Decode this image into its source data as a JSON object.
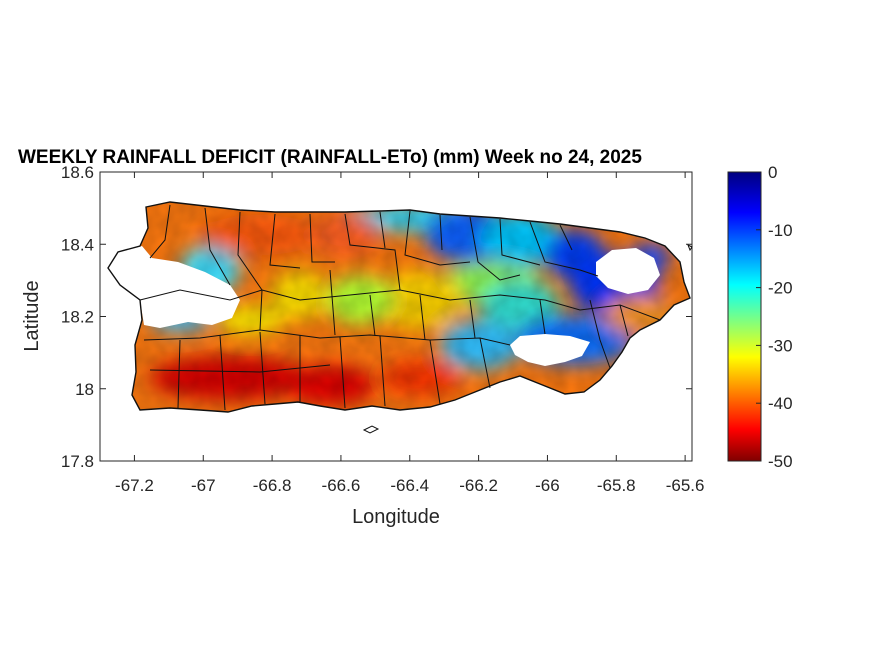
{
  "chart_data": {
    "type": "heatmap",
    "title": "WEEKLY RAINFALL DEFICIT (RAINFALL-ETo) (mm) Week no 24, 2025",
    "xlabel": "Longitude",
    "ylabel": "Latitude",
    "xlim": [
      -67.3,
      -65.58
    ],
    "ylim": [
      17.8,
      18.6
    ],
    "xticks": [
      -67.2,
      -67,
      -66.8,
      -66.6,
      -66.4,
      -66.2,
      -66,
      -65.8,
      -65.6
    ],
    "xtick_labels": [
      "-67.2",
      "-67",
      "-66.8",
      "-66.6",
      "-66.4",
      "-66.2",
      "-66",
      "-65.8",
      "-65.6"
    ],
    "yticks": [
      17.8,
      18,
      18.2,
      18.4,
      18.6
    ],
    "ytick_labels": [
      "17.8",
      "18",
      "18.2",
      "18.4",
      "18.6"
    ],
    "grid": false,
    "colormap": "jet",
    "colorbar": {
      "location": "right",
      "min": -50,
      "max": 0,
      "ticks": [
        0,
        -10,
        -20,
        -30,
        -40,
        -50
      ],
      "tick_labels": [
        "0",
        "-10",
        "-20",
        "-30",
        "-40",
        "-50"
      ]
    },
    "field_summary": {
      "south_coast": -45,
      "west_interior": -38,
      "central_interior": -30,
      "northeast_interior": -12,
      "east_coast": -35,
      "no_data_regions": [
        "northwest",
        "east-central",
        "southeast-central"
      ]
    }
  }
}
